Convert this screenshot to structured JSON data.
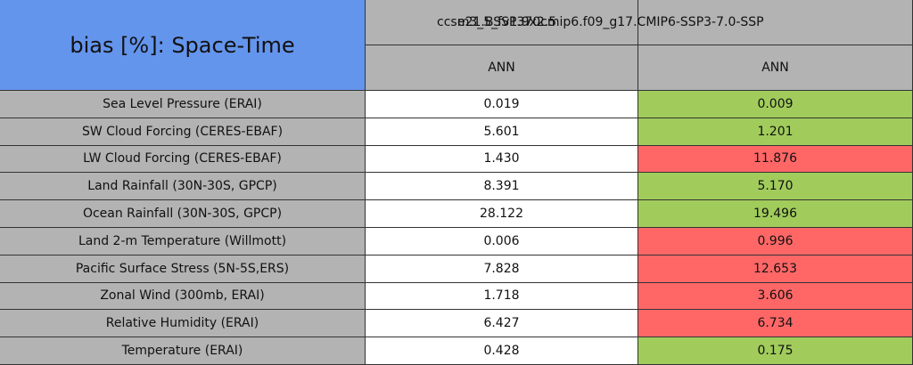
{
  "table": {
    "title": "bias [%]: Space-Time",
    "title_color": "#6495ed",
    "header_color": "#b3b3b3",
    "columns": [
      {
        "name": "ccsm3_5_fv1.9x2.5",
        "period": "ANN"
      },
      {
        "name": "e21.BSSP370cmip6.f09_g17.CMIP6-SSP3-7.0-SSP",
        "period": "ANN"
      }
    ],
    "rows": [
      {
        "label": "Sea Level Pressure (ERAI)",
        "values": [
          "0.019",
          "0.009"
        ],
        "colors": [
          "#ffffff",
          "#a1cc5b"
        ]
      },
      {
        "label": "SW Cloud Forcing (CERES-EBAF)",
        "values": [
          "5.601",
          "1.201"
        ],
        "colors": [
          "#ffffff",
          "#a1cc5b"
        ]
      },
      {
        "label": "LW Cloud Forcing (CERES-EBAF)",
        "values": [
          "1.430",
          "11.876"
        ],
        "colors": [
          "#ffffff",
          "#ff6767"
        ]
      },
      {
        "label": "Land Rainfall (30N-30S, GPCP)",
        "values": [
          "8.391",
          "5.170"
        ],
        "colors": [
          "#ffffff",
          "#a1cc5b"
        ]
      },
      {
        "label": "Ocean Rainfall (30N-30S, GPCP)",
        "values": [
          "28.122",
          "19.496"
        ],
        "colors": [
          "#ffffff",
          "#a1cc5b"
        ]
      },
      {
        "label": "Land 2-m Temperature (Willmott)",
        "values": [
          "0.006",
          "0.996"
        ],
        "colors": [
          "#ffffff",
          "#ff6767"
        ]
      },
      {
        "label": "Pacific Surface Stress (5N-5S,ERS)",
        "values": [
          "7.828",
          "12.653"
        ],
        "colors": [
          "#ffffff",
          "#ff6767"
        ]
      },
      {
        "label": "Zonal Wind (300mb, ERAI)",
        "values": [
          "1.718",
          "3.606"
        ],
        "colors": [
          "#ffffff",
          "#ff6767"
        ]
      },
      {
        "label": "Relative Humidity (ERAI)",
        "values": [
          "6.427",
          "6.734"
        ],
        "colors": [
          "#ffffff",
          "#ff6767"
        ]
      },
      {
        "label": "Temperature (ERAI)",
        "values": [
          "0.428",
          "0.175"
        ],
        "colors": [
          "#ffffff",
          "#a1cc5b"
        ]
      }
    ]
  }
}
